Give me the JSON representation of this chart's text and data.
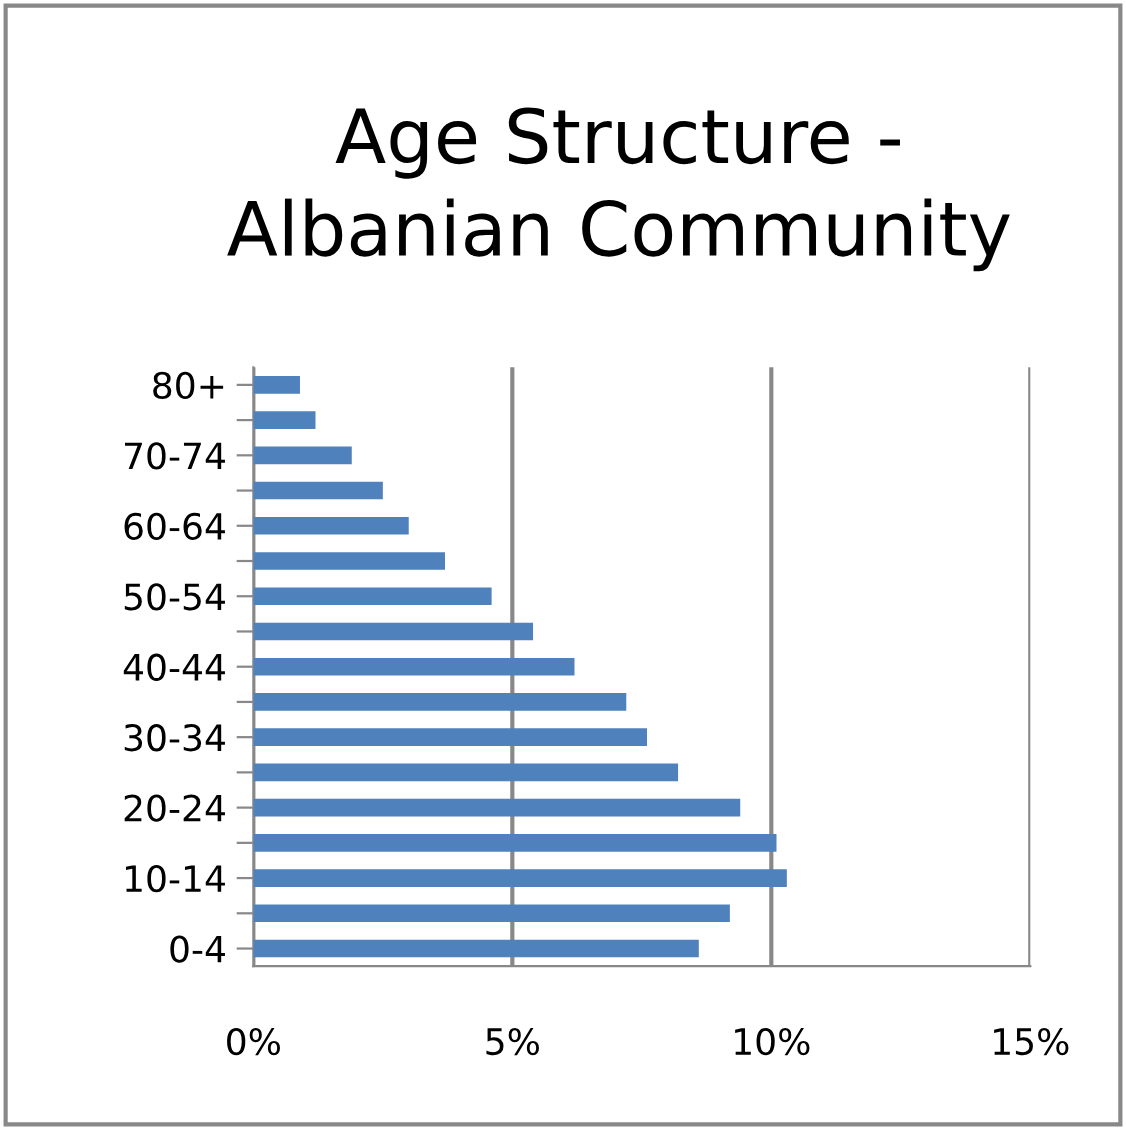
{
  "chart_data": {
    "type": "bar",
    "orientation": "horizontal",
    "title": "Age Structure -\nAlbanian Community",
    "categories": [
      "80+",
      null,
      "70-74",
      null,
      "60-64",
      null,
      "50-54",
      null,
      "40-44",
      null,
      "30-34",
      null,
      "20-24",
      null,
      "10-14",
      null,
      "0-4"
    ],
    "values": [
      0.9,
      1.2,
      1.9,
      2.5,
      3.0,
      3.7,
      4.6,
      5.4,
      6.2,
      7.2,
      7.6,
      8.2,
      9.4,
      10.1,
      10.3,
      9.2,
      8.6
    ],
    "color": "#4f81bd",
    "xlim": [
      0,
      15
    ],
    "xticks": [
      {
        "value": 0,
        "label": "0%"
      },
      {
        "value": 5,
        "label": "5%"
      },
      {
        "value": 10,
        "label": "10%"
      },
      {
        "value": 15,
        "label": "15%"
      }
    ],
    "grid": "x",
    "legend": false
  }
}
